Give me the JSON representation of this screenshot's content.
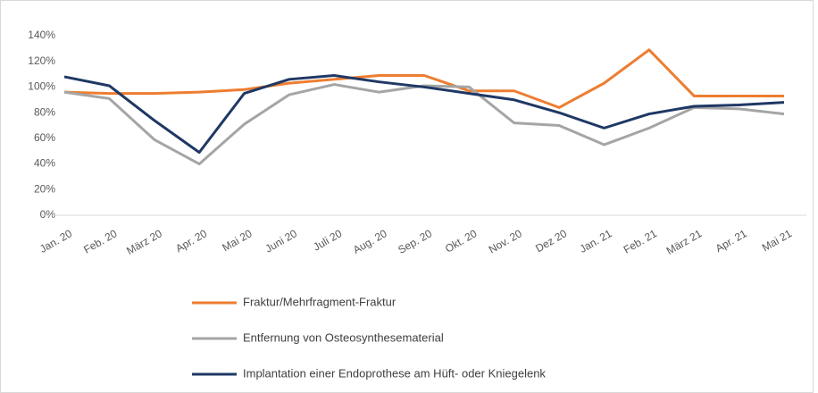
{
  "chart_data": {
    "type": "line",
    "categories": [
      "Jan. 20",
      "Feb. 20",
      "März 20",
      "Apr. 20",
      "Mai 20",
      "Juni 20",
      "Juli 20",
      "Aug. 20",
      "Sep. 20",
      "Okt. 20",
      "Nov. 20",
      "Dez 20",
      "Jan. 21",
      "Feb. 21",
      "März 21",
      "Apr. 21",
      "Mai 21"
    ],
    "series": [
      {
        "name": "Fraktur/Mehrfragment-Fraktur",
        "color": "#ed7d31",
        "values": [
          96,
          95,
          95,
          96,
          98,
          103,
          106,
          109,
          109,
          97,
          97,
          84,
          103,
          129,
          93,
          93,
          93
        ]
      },
      {
        "name": "Entfernung von Osteosynthesematerial",
        "color": "#a5a5a5",
        "values": [
          96,
          91,
          59,
          40,
          71,
          94,
          102,
          96,
          101,
          100,
          72,
          70,
          55,
          68,
          84,
          83,
          79
        ]
      },
      {
        "name": "Implantation einer Endoprothese am Hüft- oder Kniegelenk",
        "color": "#1f3864",
        "values": [
          108,
          101,
          74,
          49,
          95,
          106,
          109,
          104,
          100,
          95,
          90,
          80,
          68,
          79,
          85,
          86,
          88
        ]
      }
    ],
    "ylim": [
      0,
      140
    ],
    "yticks": [
      {
        "value": 0,
        "label": "0%"
      },
      {
        "value": 20,
        "label": "20%"
      },
      {
        "value": 40,
        "label": "40%"
      },
      {
        "value": 60,
        "label": "60%"
      },
      {
        "value": 80,
        "label": "80%"
      },
      {
        "value": 100,
        "label": "100%"
      },
      {
        "value": 120,
        "label": "120%"
      },
      {
        "value": 140,
        "label": "140%"
      }
    ],
    "grid": false
  }
}
